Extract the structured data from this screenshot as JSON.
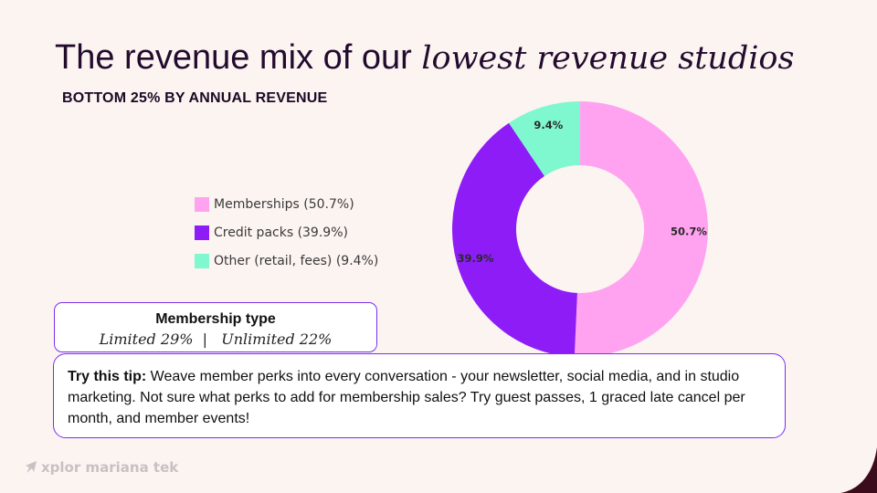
{
  "slide": {
    "title_regular": "The revenue mix of our ",
    "title_italic": "lowest revenue studios",
    "subtitle": "BOTTOM 25% BY ANNUAL REVENUE"
  },
  "chart_data": {
    "type": "pie",
    "style": "donut",
    "categories": [
      "Memberships (50.7%)",
      "Credit packs (39.9%)",
      "Other (retail, fees) (9.4%)"
    ],
    "values": [
      50.7,
      39.9,
      9.4
    ],
    "slice_labels": [
      "50.7%",
      "39.9%",
      "9.4%"
    ],
    "colors": [
      "#ffa3f0",
      "#8e1cf7",
      "#7ff7cf"
    ],
    "legend_position": "left"
  },
  "membership": {
    "title": "Membership type",
    "values": "Limited 29%  |   Unlimited 22%"
  },
  "tip": {
    "label": "Try this tip:",
    "text": " Weave member perks into every conversation - your newsletter, social media, and in studio marketing. Not sure what perks to add for membership sales? Try guest passes, 1 graced late cancel per month, and member events!"
  },
  "logo": {
    "text": "xplor mariana tek",
    "icon": "rocket-icon"
  },
  "colors": {
    "background": "#fcf4f1",
    "accent_border": "#7a2ff0",
    "corner": "#3a0c1c"
  }
}
